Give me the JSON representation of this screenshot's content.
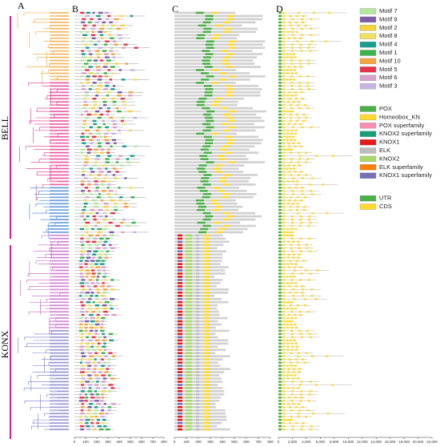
{
  "panels": {
    "a": "A",
    "b": "B",
    "c": "C",
    "d": "D"
  },
  "groups": {
    "bell": "BELL",
    "knox": "KONX"
  },
  "axes": {
    "b": [
      "0",
      "100",
      "200",
      "300",
      "400",
      "500",
      "600",
      "700",
      "800"
    ],
    "c": [
      "0",
      "100",
      "200",
      "300",
      "400",
      "500",
      "600",
      "700",
      "800"
    ],
    "d": [
      "0",
      "2,000",
      "4,000",
      "6,000",
      "8,000",
      "10,000",
      "12,000",
      "14,000",
      "16,000",
      "18,000",
      "20,000",
      "22,000"
    ]
  },
  "legends": [
    {
      "items": [
        {
          "label": "Motif 7",
          "color": "#b5e6a0"
        },
        {
          "label": "Motif 9",
          "color": "#7b5ea7"
        },
        {
          "label": "Motif 2",
          "color": "#f5d33a"
        },
        {
          "label": "Motif 8",
          "color": "#f0e060"
        },
        {
          "label": "Motif 4",
          "color": "#1a9e8f"
        },
        {
          "label": "Motif 1",
          "color": "#3cb44b"
        },
        {
          "label": "Motif 10",
          "color": "#f4a540"
        },
        {
          "label": "Motif 5",
          "color": "#e8344a"
        },
        {
          "label": "Motif 6",
          "color": "#d9a0c8"
        },
        {
          "label": "Motif 3",
          "color": "#c8b4e0"
        }
      ]
    },
    {
      "items": [
        {
          "label": "POX",
          "color": "#4daf4a"
        },
        {
          "label": "Homeobox_KN",
          "color": "#ffd92f"
        },
        {
          "label": "POX superfamily",
          "color": "#f48fb1"
        },
        {
          "label": "KNOX2 superfamily",
          "color": "#1b9e77"
        },
        {
          "label": "KNOX1",
          "color": "#e41a1c"
        },
        {
          "label": "ELK",
          "color": "#bdbdbd"
        },
        {
          "label": "KNOX2",
          "color": "#a6d96a"
        },
        {
          "label": "ELK superfamily",
          "color": "#ff7f00"
        },
        {
          "label": "KNOX1 superfamily",
          "color": "#7570b3"
        }
      ]
    },
    {
      "items": [
        {
          "label": "UTR",
          "color": "#4daf4a"
        },
        {
          "label": "CDS",
          "color": "#ffd92f"
        }
      ]
    }
  ]
}
